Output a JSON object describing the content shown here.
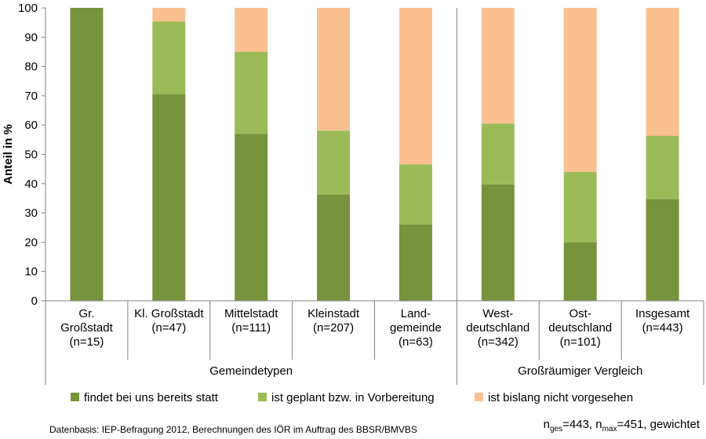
{
  "chart_data": {
    "type": "bar",
    "stacked": true,
    "ylabel": "Anteil in %",
    "ylim": [
      0,
      100
    ],
    "yticks": [
      0,
      10,
      20,
      30,
      40,
      50,
      60,
      70,
      80,
      90,
      100
    ],
    "grid": false,
    "legend_position": "bottom",
    "categories": [
      [
        "Gr.",
        "Großstadt",
        "(n=15)"
      ],
      [
        "Kl. Großstadt",
        "(n=47)"
      ],
      [
        "Mittelstadt",
        "(n=111)"
      ],
      [
        "Kleinstadt",
        "(n=207)"
      ],
      [
        "Land-",
        "gemeinde",
        "(n=63)"
      ],
      [
        "West-",
        "deutschland",
        "(n=342)"
      ],
      [
        "Ost-",
        "deutschland",
        "(n=101)"
      ],
      [
        "Insgesamt",
        "(n=443)"
      ]
    ],
    "groups": [
      {
        "label": "Gemeindetypen",
        "span": [
          0,
          4
        ]
      },
      {
        "label": "Großräumiger Vergleich",
        "span": [
          5,
          7
        ]
      }
    ],
    "series": [
      {
        "name": "findet bei uns bereits statt",
        "color": "#77933c",
        "values": [
          100,
          70.5,
          57,
          36.3,
          26,
          39.7,
          20,
          34.7
        ]
      },
      {
        "name": "ist geplant bzw. in Vorbereitung",
        "color": "#9bbb59",
        "values": [
          0,
          24.8,
          28,
          21.8,
          20.6,
          20.8,
          24,
          21.6
        ]
      },
      {
        "name": "ist bislang nicht vorgesehen",
        "color": "#fac090",
        "values": [
          0,
          4.7,
          15,
          41.9,
          53.4,
          39.5,
          56,
          43.7
        ]
      }
    ]
  },
  "footer": {
    "source": "Datenbasis: IEP-Befragung 2012, Berechnungen des IÖR im Auftrag des BBSR/BMVBS",
    "n_ges_base": "n",
    "n_ges_sub": "ges",
    "n_ges_value": "=443, ",
    "n_max_base": "n",
    "n_max_sub": "max",
    "n_max_value": "=451, gewichtet"
  }
}
